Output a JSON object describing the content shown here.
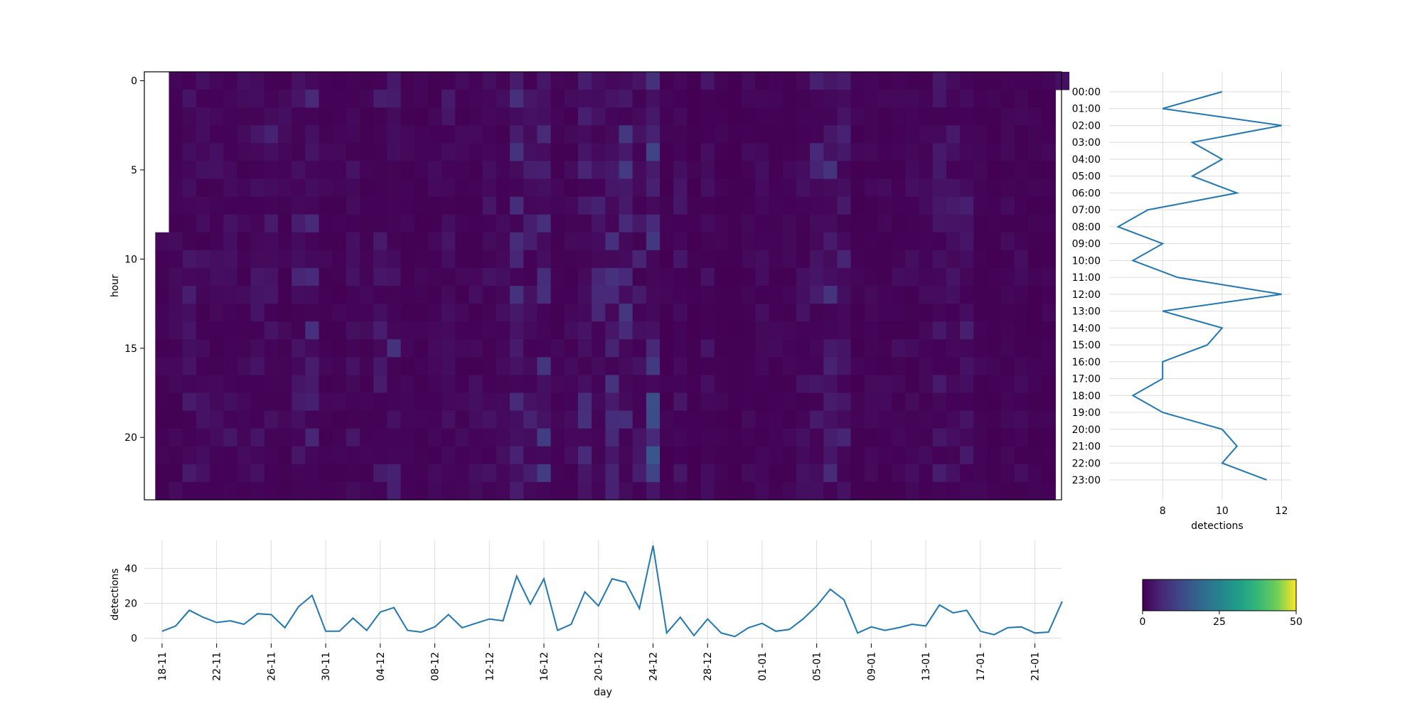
{
  "chart_data": [
    {
      "id": "heatmap",
      "type": "heatmap",
      "title": "",
      "ylabel": "hour",
      "xlabel": "",
      "y_ticks": [
        0,
        5,
        10,
        15,
        20
      ],
      "y_range": [
        0,
        23
      ],
      "n_days": 67,
      "first_day_start_hour": 9,
      "last_day_end_hour": 0,
      "colormap": "viridis",
      "color_range": [
        0,
        50
      ]
    },
    {
      "id": "hourly",
      "type": "line",
      "xlabel": "detections",
      "ylabel": "",
      "x_ticks": [
        8,
        10,
        12
      ],
      "xlim": [
        6.2,
        12.3
      ],
      "grid": true,
      "color": "#1f77b4",
      "categories": [
        "00:00",
        "01:00",
        "02:00",
        "03:00",
        "04:00",
        "05:00",
        "06:00",
        "07:00",
        "08:00",
        "09:00",
        "10:00",
        "11:00",
        "12:00",
        "13:00",
        "14:00",
        "15:00",
        "16:00",
        "17:00",
        "18:00",
        "19:00",
        "20:00",
        "21:00",
        "22:00",
        "23:00"
      ],
      "values": [
        10,
        8,
        12,
        9,
        10,
        9,
        10.5,
        7.5,
        6.5,
        8,
        7,
        8.5,
        12,
        8,
        10,
        9.5,
        8,
        8,
        7,
        8,
        10,
        10.5,
        10,
        11.5
      ]
    },
    {
      "id": "daily",
      "type": "line",
      "xlabel": "day",
      "ylabel": "detections",
      "y_ticks": [
        0,
        20,
        40
      ],
      "ylim": [
        -3,
        56
      ],
      "grid": true,
      "color": "#1f77b4",
      "tick_labels": [
        "18-11",
        "22-11",
        "26-11",
        "30-11",
        "04-12",
        "08-12",
        "12-12",
        "16-12",
        "20-12",
        "24-12",
        "28-12",
        "01-01",
        "05-01",
        "09-01",
        "13-01",
        "17-01",
        "21-01"
      ],
      "tick_step_days": 4,
      "start_date": "18-11",
      "values": [
        4,
        7,
        16,
        12,
        9,
        10,
        8,
        14,
        13.5,
        6,
        18,
        24.5,
        4,
        4,
        11.5,
        4.5,
        15,
        17.5,
        4.5,
        3.5,
        6.5,
        13.5,
        6,
        8.5,
        11,
        10,
        35.5,
        19.5,
        34,
        4.5,
        8,
        26.5,
        18.5,
        34,
        32,
        17,
        53,
        3,
        12,
        1.5,
        11,
        3,
        1,
        6,
        8.5,
        4,
        5,
        11,
        18.5,
        28,
        22,
        3,
        6.5,
        4.5,
        6,
        8,
        7,
        19,
        14.5,
        16,
        4,
        2,
        6,
        6.5,
        3,
        3.5,
        21
      ]
    },
    {
      "id": "colorbar",
      "type": "colorbar",
      "colormap": "viridis",
      "range": [
        0,
        50
      ],
      "ticks": [
        0,
        25,
        50
      ]
    }
  ]
}
